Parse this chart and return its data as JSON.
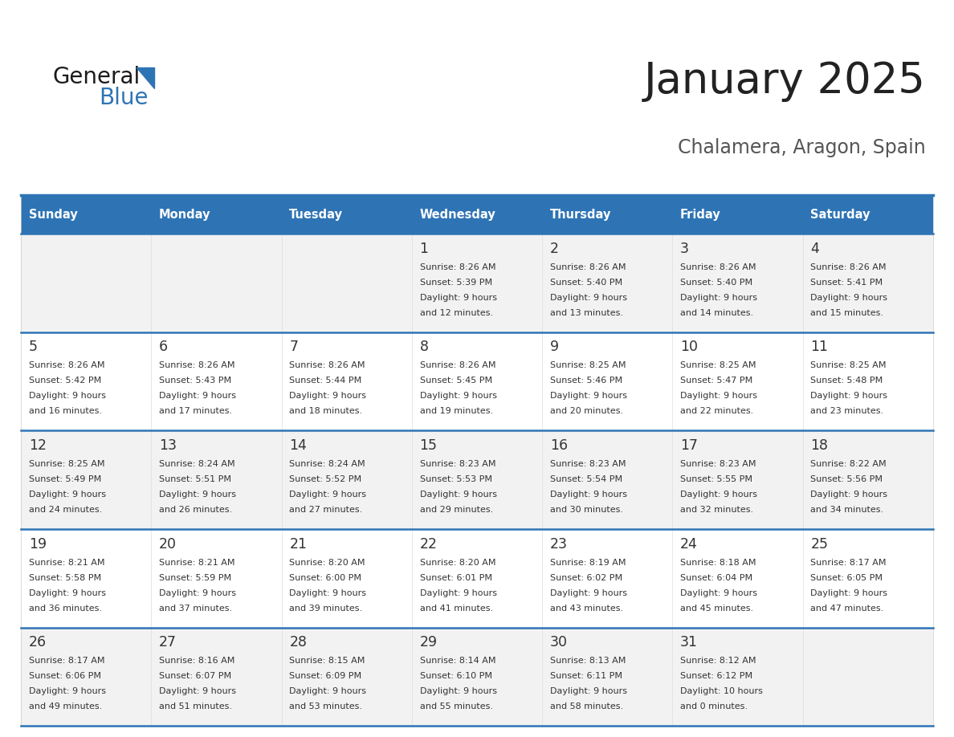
{
  "title": "January 2025",
  "subtitle": "Chalamera, Aragon, Spain",
  "header_bg": "#2E74B5",
  "header_text_color": "#FFFFFF",
  "cell_bg_odd": "#F2F2F2",
  "cell_bg_even": "#FFFFFF",
  "day_names": [
    "Sunday",
    "Monday",
    "Tuesday",
    "Wednesday",
    "Thursday",
    "Friday",
    "Saturday"
  ],
  "title_color": "#222222",
  "subtitle_color": "#555555",
  "text_color": "#333333",
  "line_color": "#2E74B5",
  "calendar": [
    [
      {
        "day": "",
        "sunrise": "",
        "sunset": "",
        "daylight_line1": "",
        "daylight_line2": ""
      },
      {
        "day": "",
        "sunrise": "",
        "sunset": "",
        "daylight_line1": "",
        "daylight_line2": ""
      },
      {
        "day": "",
        "sunrise": "",
        "sunset": "",
        "daylight_line1": "",
        "daylight_line2": ""
      },
      {
        "day": "1",
        "sunrise": "8:26 AM",
        "sunset": "5:39 PM",
        "daylight_line1": "Daylight: 9 hours",
        "daylight_line2": "and 12 minutes."
      },
      {
        "day": "2",
        "sunrise": "8:26 AM",
        "sunset": "5:40 PM",
        "daylight_line1": "Daylight: 9 hours",
        "daylight_line2": "and 13 minutes."
      },
      {
        "day": "3",
        "sunrise": "8:26 AM",
        "sunset": "5:40 PM",
        "daylight_line1": "Daylight: 9 hours",
        "daylight_line2": "and 14 minutes."
      },
      {
        "day": "4",
        "sunrise": "8:26 AM",
        "sunset": "5:41 PM",
        "daylight_line1": "Daylight: 9 hours",
        "daylight_line2": "and 15 minutes."
      }
    ],
    [
      {
        "day": "5",
        "sunrise": "8:26 AM",
        "sunset": "5:42 PM",
        "daylight_line1": "Daylight: 9 hours",
        "daylight_line2": "and 16 minutes."
      },
      {
        "day": "6",
        "sunrise": "8:26 AM",
        "sunset": "5:43 PM",
        "daylight_line1": "Daylight: 9 hours",
        "daylight_line2": "and 17 minutes."
      },
      {
        "day": "7",
        "sunrise": "8:26 AM",
        "sunset": "5:44 PM",
        "daylight_line1": "Daylight: 9 hours",
        "daylight_line2": "and 18 minutes."
      },
      {
        "day": "8",
        "sunrise": "8:26 AM",
        "sunset": "5:45 PM",
        "daylight_line1": "Daylight: 9 hours",
        "daylight_line2": "and 19 minutes."
      },
      {
        "day": "9",
        "sunrise": "8:25 AM",
        "sunset": "5:46 PM",
        "daylight_line1": "Daylight: 9 hours",
        "daylight_line2": "and 20 minutes."
      },
      {
        "day": "10",
        "sunrise": "8:25 AM",
        "sunset": "5:47 PM",
        "daylight_line1": "Daylight: 9 hours",
        "daylight_line2": "and 22 minutes."
      },
      {
        "day": "11",
        "sunrise": "8:25 AM",
        "sunset": "5:48 PM",
        "daylight_line1": "Daylight: 9 hours",
        "daylight_line2": "and 23 minutes."
      }
    ],
    [
      {
        "day": "12",
        "sunrise": "8:25 AM",
        "sunset": "5:49 PM",
        "daylight_line1": "Daylight: 9 hours",
        "daylight_line2": "and 24 minutes."
      },
      {
        "day": "13",
        "sunrise": "8:24 AM",
        "sunset": "5:51 PM",
        "daylight_line1": "Daylight: 9 hours",
        "daylight_line2": "and 26 minutes."
      },
      {
        "day": "14",
        "sunrise": "8:24 AM",
        "sunset": "5:52 PM",
        "daylight_line1": "Daylight: 9 hours",
        "daylight_line2": "and 27 minutes."
      },
      {
        "day": "15",
        "sunrise": "8:23 AM",
        "sunset": "5:53 PM",
        "daylight_line1": "Daylight: 9 hours",
        "daylight_line2": "and 29 minutes."
      },
      {
        "day": "16",
        "sunrise": "8:23 AM",
        "sunset": "5:54 PM",
        "daylight_line1": "Daylight: 9 hours",
        "daylight_line2": "and 30 minutes."
      },
      {
        "day": "17",
        "sunrise": "8:23 AM",
        "sunset": "5:55 PM",
        "daylight_line1": "Daylight: 9 hours",
        "daylight_line2": "and 32 minutes."
      },
      {
        "day": "18",
        "sunrise": "8:22 AM",
        "sunset": "5:56 PM",
        "daylight_line1": "Daylight: 9 hours",
        "daylight_line2": "and 34 minutes."
      }
    ],
    [
      {
        "day": "19",
        "sunrise": "8:21 AM",
        "sunset": "5:58 PM",
        "daylight_line1": "Daylight: 9 hours",
        "daylight_line2": "and 36 minutes."
      },
      {
        "day": "20",
        "sunrise": "8:21 AM",
        "sunset": "5:59 PM",
        "daylight_line1": "Daylight: 9 hours",
        "daylight_line2": "and 37 minutes."
      },
      {
        "day": "21",
        "sunrise": "8:20 AM",
        "sunset": "6:00 PM",
        "daylight_line1": "Daylight: 9 hours",
        "daylight_line2": "and 39 minutes."
      },
      {
        "day": "22",
        "sunrise": "8:20 AM",
        "sunset": "6:01 PM",
        "daylight_line1": "Daylight: 9 hours",
        "daylight_line2": "and 41 minutes."
      },
      {
        "day": "23",
        "sunrise": "8:19 AM",
        "sunset": "6:02 PM",
        "daylight_line1": "Daylight: 9 hours",
        "daylight_line2": "and 43 minutes."
      },
      {
        "day": "24",
        "sunrise": "8:18 AM",
        "sunset": "6:04 PM",
        "daylight_line1": "Daylight: 9 hours",
        "daylight_line2": "and 45 minutes."
      },
      {
        "day": "25",
        "sunrise": "8:17 AM",
        "sunset": "6:05 PM",
        "daylight_line1": "Daylight: 9 hours",
        "daylight_line2": "and 47 minutes."
      }
    ],
    [
      {
        "day": "26",
        "sunrise": "8:17 AM",
        "sunset": "6:06 PM",
        "daylight_line1": "Daylight: 9 hours",
        "daylight_line2": "and 49 minutes."
      },
      {
        "day": "27",
        "sunrise": "8:16 AM",
        "sunset": "6:07 PM",
        "daylight_line1": "Daylight: 9 hours",
        "daylight_line2": "and 51 minutes."
      },
      {
        "day": "28",
        "sunrise": "8:15 AM",
        "sunset": "6:09 PM",
        "daylight_line1": "Daylight: 9 hours",
        "daylight_line2": "and 53 minutes."
      },
      {
        "day": "29",
        "sunrise": "8:14 AM",
        "sunset": "6:10 PM",
        "daylight_line1": "Daylight: 9 hours",
        "daylight_line2": "and 55 minutes."
      },
      {
        "day": "30",
        "sunrise": "8:13 AM",
        "sunset": "6:11 PM",
        "daylight_line1": "Daylight: 9 hours",
        "daylight_line2": "and 58 minutes."
      },
      {
        "day": "31",
        "sunrise": "8:12 AM",
        "sunset": "6:12 PM",
        "daylight_line1": "Daylight: 10 hours",
        "daylight_line2": "and 0 minutes."
      },
      {
        "day": "",
        "sunrise": "",
        "sunset": "",
        "daylight_line1": "",
        "daylight_line2": ""
      }
    ]
  ]
}
